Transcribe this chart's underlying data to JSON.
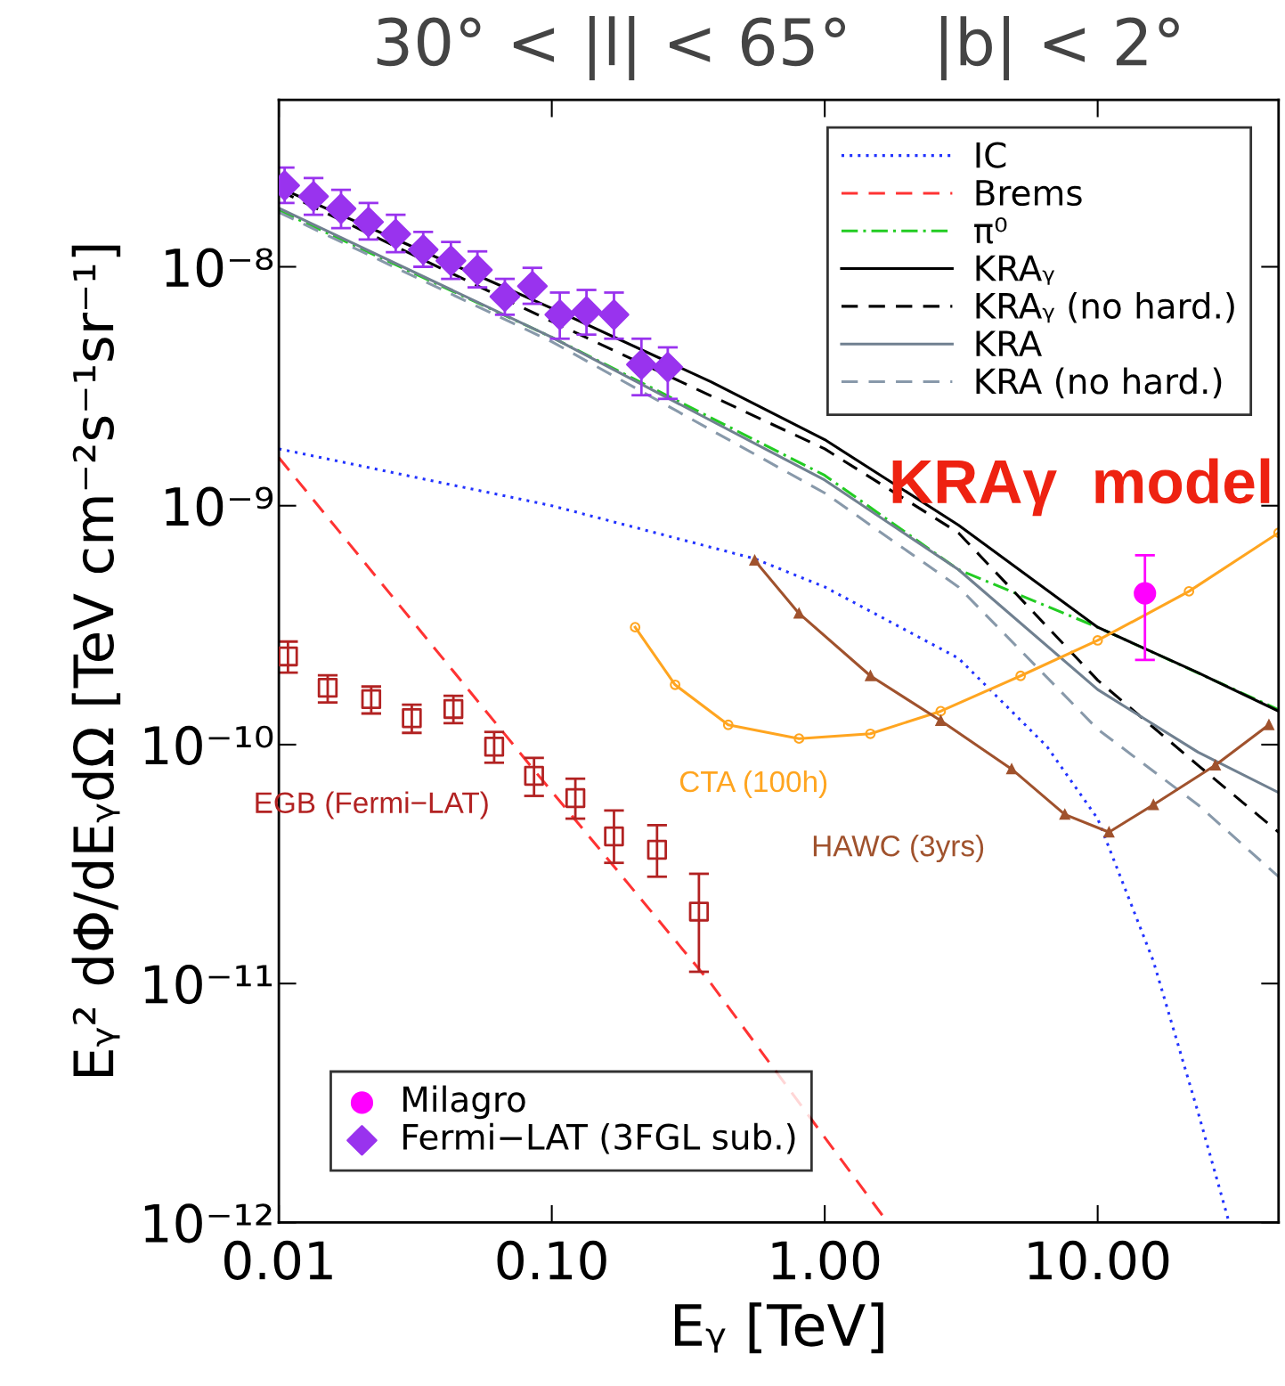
{
  "chart_data": {
    "type": "line",
    "title": "30° < |l| < 65°    |b| < 2°",
    "xlabel": "Eᵧ [TeV]",
    "ylabel": "Eᵧ² dΦ/dEᵧdΩ [TeV cm⁻²s⁻¹sr⁻¹]",
    "log": "xy",
    "xlim": [
      0.01,
      46
    ],
    "ylim": [
      1e-12,
      5e-08
    ],
    "xticks": [
      {
        "value": 0.01,
        "label": "0.01"
      },
      {
        "value": 0.1,
        "label": "0.10"
      },
      {
        "value": 1,
        "label": "1.00"
      },
      {
        "value": 10,
        "label": "10.00"
      }
    ],
    "yticks": [
      {
        "value": 1e-12,
        "label": "10⁻¹²"
      },
      {
        "value": 1e-11,
        "label": "10⁻¹¹"
      },
      {
        "value": 1e-10,
        "label": "10⁻¹⁰"
      },
      {
        "value": 1e-09,
        "label": "10⁻⁹"
      },
      {
        "value": 1e-08,
        "label": "10⁻⁸"
      }
    ],
    "grid": false,
    "legend": "top right",
    "series": [
      {
        "name": "IC",
        "color": "#2233ff",
        "line_style": "dotted",
        "x": [
          0.01,
          0.1,
          0.554,
          1.0,
          3.09,
          6.53,
          10,
          16.0,
          23.3,
          30.3
        ],
        "values": [
          1.73e-09,
          1e-09,
          6e-10,
          4.57e-10,
          2.3e-10,
          9.8e-11,
          4.9e-11,
          1.24e-11,
          2.9e-12,
          1e-12
        ]
      },
      {
        "name": "Brems",
        "color": "#ff3333",
        "line_style": "dashed",
        "x": [
          0.01,
          0.0855,
          0.383,
          1.7
        ],
        "values": [
          1.59e-09,
          7.9e-11,
          1e-11,
          1e-12
        ]
      },
      {
        "name": "π⁰",
        "color": "#22cc22",
        "line_style": "dashdot",
        "x": [
          0.01,
          0.1,
          1,
          3.09,
          10,
          46
        ],
        "values": [
          1.72e-08,
          5.07e-09,
          1.34e-09,
          5.4e-10,
          3.1e-10,
          1.4e-10
        ]
      },
      {
        "name": "KRAᵧ",
        "color": "#000000",
        "line_style": "solid",
        "x": [
          0.01,
          0.0278,
          0.1,
          0.383,
          1,
          3.09,
          10,
          23.3,
          46
        ],
        "values": [
          2.15e-08,
          1.28e-08,
          6.7e-09,
          3.3e-09,
          1.89e-09,
          8.3e-10,
          3.1e-10,
          2e-10,
          1.38e-10
        ]
      },
      {
        "name": "KRAᵧ (no hard.)",
        "color": "#000000",
        "line_style": "dashed",
        "x": [
          0.01,
          0.1,
          1,
          3.09,
          10,
          23.3,
          46
        ],
        "values": [
          2.09e-08,
          5.9e-09,
          1.73e-09,
          7.7e-10,
          1.86e-10,
          8.2e-11,
          4.3e-11
        ]
      },
      {
        "name": "KRA",
        "color": "#708090",
        "line_style": "solid",
        "x": [
          0.01,
          0.1,
          1,
          3.09,
          10,
          23.3,
          46
        ],
        "values": [
          1.76e-08,
          5.07e-09,
          1.28e-09,
          5.4e-10,
          1.7e-10,
          9.3e-11,
          6.3e-11
        ]
      },
      {
        "name": "KRA (no hard.)",
        "color": "#8899aa",
        "line_style": "dashed",
        "x": [
          0.01,
          0.1,
          1,
          3.09,
          10,
          23.3,
          46
        ],
        "values": [
          1.69e-08,
          4.86e-09,
          1.13e-09,
          4.57e-10,
          1.16e-10,
          5.6e-11,
          2.8e-11
        ]
      },
      {
        "name": "CTA (100h)",
        "color": "#ffa520",
        "line_style": "solid",
        "marker": "circle",
        "x": [
          0.202,
          0.283,
          0.443,
          0.805,
          1.47,
          2.66,
          5.22,
          10,
          21.6,
          46
        ],
        "values": [
          3.1e-10,
          1.78e-10,
          1.21e-10,
          1.06e-10,
          1.11e-10,
          1.38e-10,
          1.94e-10,
          2.73e-10,
          4.38e-10,
          7.7e-10
        ]
      },
      {
        "name": "HAWC (3yrs)",
        "color": "#a0522d",
        "line_style": "solid",
        "marker": "triangle",
        "x": [
          0.554,
          0.805,
          1.47,
          2.66,
          4.84,
          7.58,
          11.0,
          16.0,
          27.0,
          42.4
        ],
        "values": [
          5.9e-10,
          3.54e-10,
          1.94e-10,
          1.26e-10,
          7.9e-11,
          5.1e-11,
          4.3e-11,
          5.6e-11,
          8.2e-11,
          1.21e-10
        ]
      },
      {
        "type": "scatter",
        "name": "EGB (Fermi−LAT)",
        "color": "#b22222",
        "marker": "square",
        "x": [
          0.0108,
          0.0151,
          0.0218,
          0.0307,
          0.0436,
          0.0615,
          0.0861,
          0.122,
          0.169,
          0.243,
          0.346
        ],
        "values": [
          2.34e-10,
          1.73e-10,
          1.55e-10,
          1.29e-10,
          1.41e-10,
          9.8e-11,
          7.4e-11,
          5.97e-11,
          4.13e-11,
          3.63e-11,
          2e-11
        ],
        "errors": [
          [
            2e-10,
            2.7e-10
          ],
          [
            1.5e-10,
            1.95e-10
          ],
          [
            1.35e-10,
            1.75e-10
          ],
          [
            1.12e-10,
            1.47e-10
          ],
          [
            1.23e-10,
            1.6e-10
          ],
          [
            8.4e-11,
            1.13e-10
          ],
          [
            6.1e-11,
            8.8e-11
          ],
          [
            4.9e-11,
            7.2e-11
          ],
          [
            3.2e-11,
            5.3e-11
          ],
          [
            2.8e-11,
            4.6e-11
          ],
          [
            1.12e-11,
            2.88e-11
          ]
        ]
      },
      {
        "type": "scatter",
        "name": "Milagro",
        "color": "#ff00ff",
        "marker": "circle",
        "x": [
          14.9
        ],
        "values": [
          4.3e-10
        ],
        "errors": [
          [
            2.26e-10,
            6.2e-10
          ]
        ]
      },
      {
        "type": "scatter",
        "name": "Fermi−LAT (3FGL sub.)",
        "color": "#9933ee",
        "marker": "diamond",
        "x": [
          0.0105,
          0.0134,
          0.0169,
          0.0213,
          0.0268,
          0.0338,
          0.0427,
          0.0534,
          0.0673,
          0.0849,
          0.107,
          0.134,
          0.169,
          0.213,
          0.266
        ],
        "values": [
          2.19e-08,
          1.97e-08,
          1.75e-08,
          1.54e-08,
          1.37e-08,
          1.18e-08,
          1.06e-08,
          9.7e-09,
          7.5e-09,
          8.3e-09,
          6.3e-09,
          6.5e-09,
          6.3e-09,
          3.9e-09,
          3.8e-09
        ],
        "errors": [
          [
            1.85e-08,
            2.6e-08
          ],
          [
            1.65e-08,
            2.35e-08
          ],
          [
            1.45e-08,
            2.1e-08
          ],
          [
            1.3e-08,
            1.85e-08
          ],
          [
            1.15e-08,
            1.65e-08
          ],
          [
            1e-08,
            1.4e-08
          ],
          [
            8.9e-09,
            1.27e-08
          ],
          [
            8.2e-09,
            1.16e-08
          ],
          [
            6.3e-09,
            8.9e-09
          ],
          [
            7e-09,
            9.9e-09
          ],
          [
            5e-09,
            7.8e-09
          ],
          [
            5.2e-09,
            8e-09
          ],
          [
            5e-09,
            7.8e-09
          ],
          [
            2.9e-09,
            5e-09
          ],
          [
            2.8e-09,
            4.6e-09
          ]
        ]
      }
    ],
    "annotations": [
      "KRAγ  model"
    ]
  }
}
